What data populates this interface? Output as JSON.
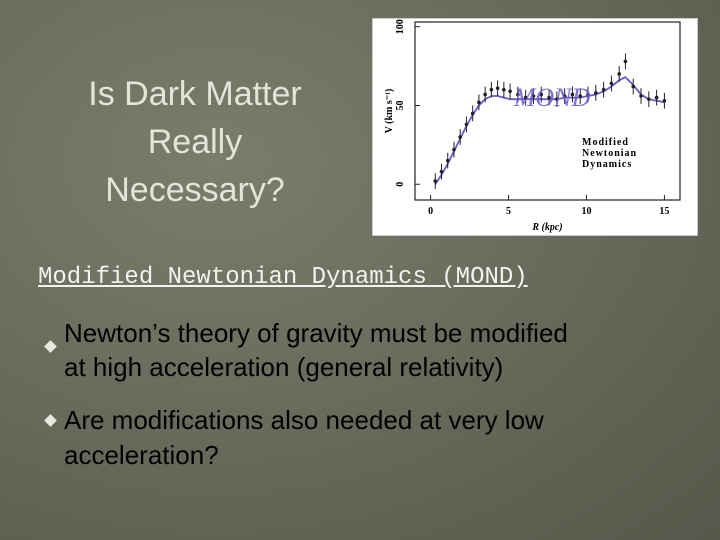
{
  "slide": {
    "title": [
      "Is Dark Matter",
      "Really",
      "Necessary?"
    ],
    "subtitle": "Modified Newtonian Dynamics (MOND)",
    "bullets": [
      [
        "Newton’s theory of gravity must be modified",
        "at high acceleration (general relativity)"
      ],
      [
        "Are modifications also needed at very low",
        "acceleration?"
      ]
    ]
  },
  "figure": {
    "type": "errorbar",
    "xlabel": "R (kpc)",
    "ylabel": "V (km s⁻¹)",
    "annotation": [
      "Modified",
      "Newtonian",
      "Dynamics"
    ],
    "curve_label": "MOND",
    "xlim": [
      -1,
      16
    ],
    "ylim": [
      -10,
      103
    ],
    "xticks": [
      0,
      5,
      10,
      15
    ],
    "yticks": [
      0,
      50,
      100
    ],
    "x": [
      0.3,
      0.7,
      1.1,
      1.5,
      1.9,
      2.3,
      2.7,
      3.1,
      3.5,
      3.9,
      4.3,
      4.7,
      5.1,
      5.6,
      6.1,
      6.6,
      7.1,
      7.6,
      8.1,
      8.6,
      9.1,
      9.6,
      10.1,
      10.6,
      11.1,
      11.6,
      12.1,
      12.5,
      13.0,
      13.5,
      14.0,
      14.5,
      15.0
    ],
    "values": [
      2,
      8,
      15,
      22,
      30,
      38,
      45,
      52,
      57,
      60,
      61,
      60,
      59,
      57,
      55,
      56,
      57,
      55,
      54,
      56,
      57,
      56,
      57,
      58,
      60,
      64,
      70,
      78,
      62,
      56,
      54,
      55,
      53
    ],
    "error": 5,
    "model": [
      0,
      6,
      13,
      21,
      29,
      37,
      44,
      50,
      54,
      56,
      56,
      55,
      54,
      54,
      54,
      54,
      54,
      54,
      54,
      55,
      55,
      55,
      56,
      57,
      59,
      62,
      66,
      68,
      63,
      57,
      54,
      53,
      52
    ],
    "color": "#222222",
    "model_color": "#6a5acd"
  }
}
